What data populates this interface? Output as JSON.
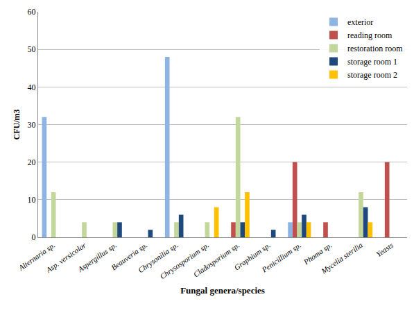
{
  "chart_data": {
    "type": "bar",
    "x_label": "Fungal genera/species",
    "y_label": "CFU/m3",
    "categories": [
      "Alternaria sp.",
      "Asp. versicolor",
      "Aspergillus sp.",
      "Beauveria sp.",
      "Chrysonilia sp.",
      "Chrysosporium sp.",
      "Cladosporium sp.",
      "Graphium sp.",
      "Penicillium sp.",
      "Phoma sp.",
      "Mycelia sterilia",
      "Yeasts"
    ],
    "series": [
      {
        "name": "exterior",
        "color": "#8eb4e3",
        "values": [
          32,
          0,
          0,
          0,
          48,
          0,
          0,
          0,
          4,
          0,
          0,
          0
        ]
      },
      {
        "name": "reading room",
        "color": "#c0504d",
        "values": [
          0,
          0,
          0,
          0,
          0,
          0,
          4,
          0,
          20,
          4,
          0,
          20
        ]
      },
      {
        "name": "restoration room",
        "color": "#c3d69b",
        "values": [
          12,
          4,
          4,
          0,
          4,
          4,
          32,
          0,
          4,
          0,
          12,
          0
        ]
      },
      {
        "name": "storage room 1",
        "color": "#1f497d",
        "values": [
          0,
          0,
          4,
          2,
          6,
          0,
          4,
          2,
          6,
          0,
          8,
          0
        ]
      },
      {
        "name": "storage room 2",
        "color": "#ffc000",
        "values": [
          0,
          0,
          0,
          0,
          0,
          8,
          12,
          0,
          4,
          0,
          4,
          0
        ]
      }
    ],
    "ylim": [
      0,
      60
    ],
    "yticks": [
      0,
      10,
      20,
      30,
      40,
      50,
      60
    ],
    "grid": true,
    "legend": "upper right"
  }
}
